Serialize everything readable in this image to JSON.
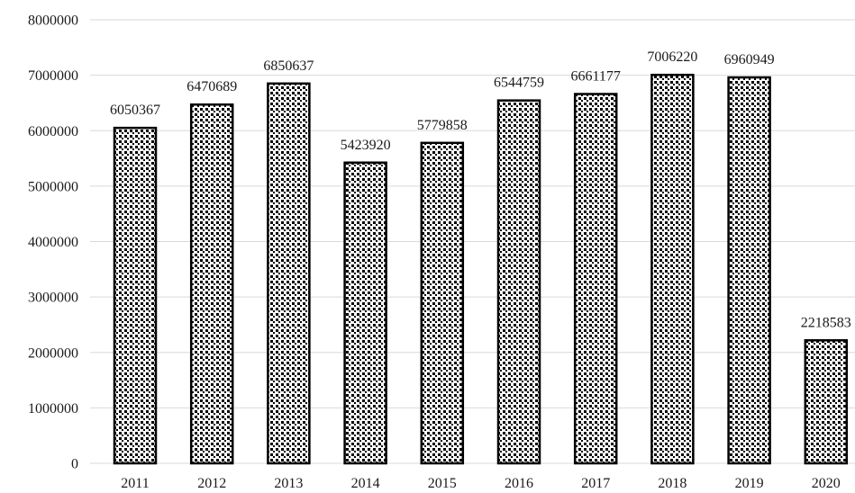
{
  "chart_data": {
    "type": "bar",
    "categories": [
      "2011",
      "2012",
      "2013",
      "2014",
      "2015",
      "2016",
      "2017",
      "2018",
      "2019",
      "2020"
    ],
    "values": [
      6050367,
      6470689,
      6850637,
      5423920,
      5779858,
      6544759,
      6661177,
      7006220,
      6960949,
      2218583
    ],
    "data_labels": [
      "6050367",
      "6470689",
      "6850637",
      "5423920",
      "5779858",
      "6544759",
      "6661177",
      "7006220",
      "6960949",
      "2218583"
    ],
    "y_ticks": [
      "0",
      "1000000",
      "2000000",
      "3000000",
      "4000000",
      "5000000",
      "6000000",
      "7000000",
      "8000000"
    ],
    "ylim": [
      0,
      8000000
    ],
    "grid": true,
    "legend": "none",
    "title": "",
    "xlabel": "",
    "ylabel": "",
    "colors": {
      "bar_fill": "#ffffff",
      "bar_pattern": "#000000",
      "bar_stroke": "#000000",
      "grid": "#d9d9d9",
      "text": "#1a1a1a"
    }
  }
}
